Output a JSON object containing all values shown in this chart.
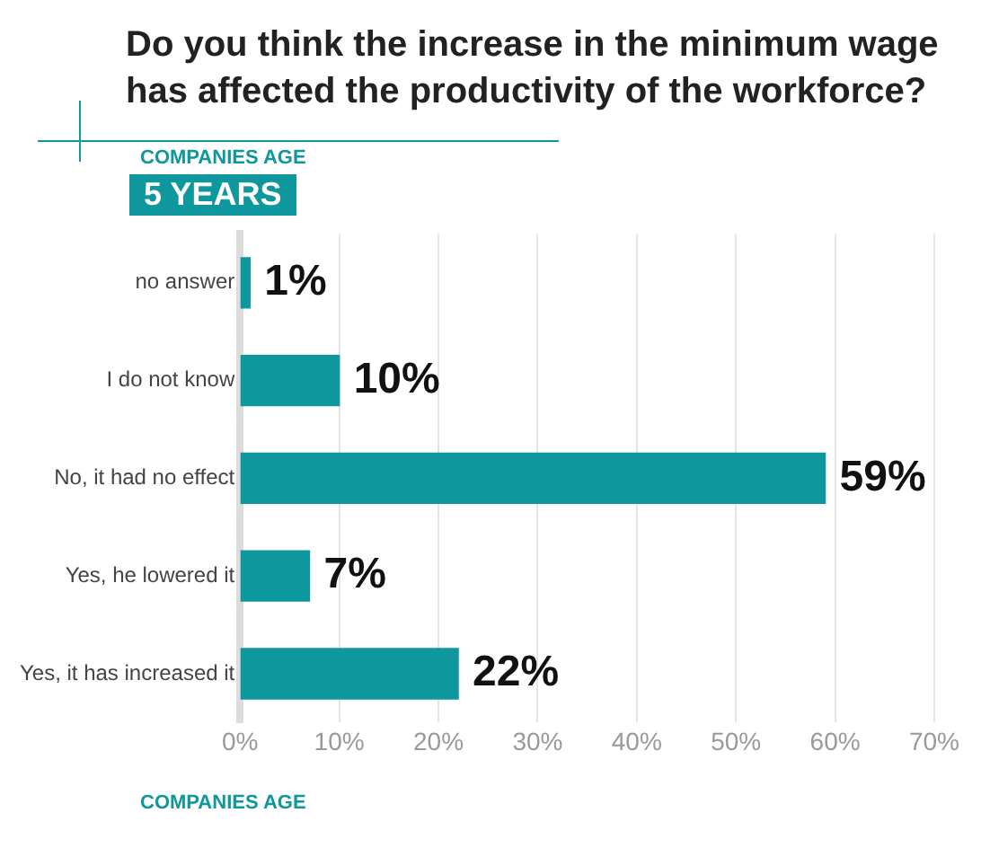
{
  "chart_data": {
    "type": "bar",
    "orientation": "horizontal",
    "title": "Do you think the increase in the minimum wage has affected the productivity of the workforce?",
    "subtitle": "COMPANIES AGE",
    "annotations": [
      "5 YEARS",
      "COMPANIES AGE"
    ],
    "categories": [
      "no answer",
      "I do not know",
      "No, it had no effect",
      "Yes, he lowered it",
      "Yes, it has increased it"
    ],
    "values": [
      1,
      10,
      59,
      7,
      22
    ],
    "value_labels": [
      "1%",
      "10%",
      "59%",
      "7%",
      "22%"
    ],
    "color": "#0e979c",
    "xlim": [
      0,
      70
    ],
    "xticks": [
      {
        "value": 0,
        "label": "0%"
      },
      {
        "value": 10,
        "label": "10%"
      },
      {
        "value": 20,
        "label": "20%"
      },
      {
        "value": 30,
        "label": "30%"
      },
      {
        "value": 40,
        "label": "40%"
      },
      {
        "value": 50,
        "label": "50%"
      },
      {
        "value": 60,
        "label": "60%"
      },
      {
        "value": 70,
        "label": "70%"
      }
    ],
    "grid": "x",
    "legend": false
  }
}
